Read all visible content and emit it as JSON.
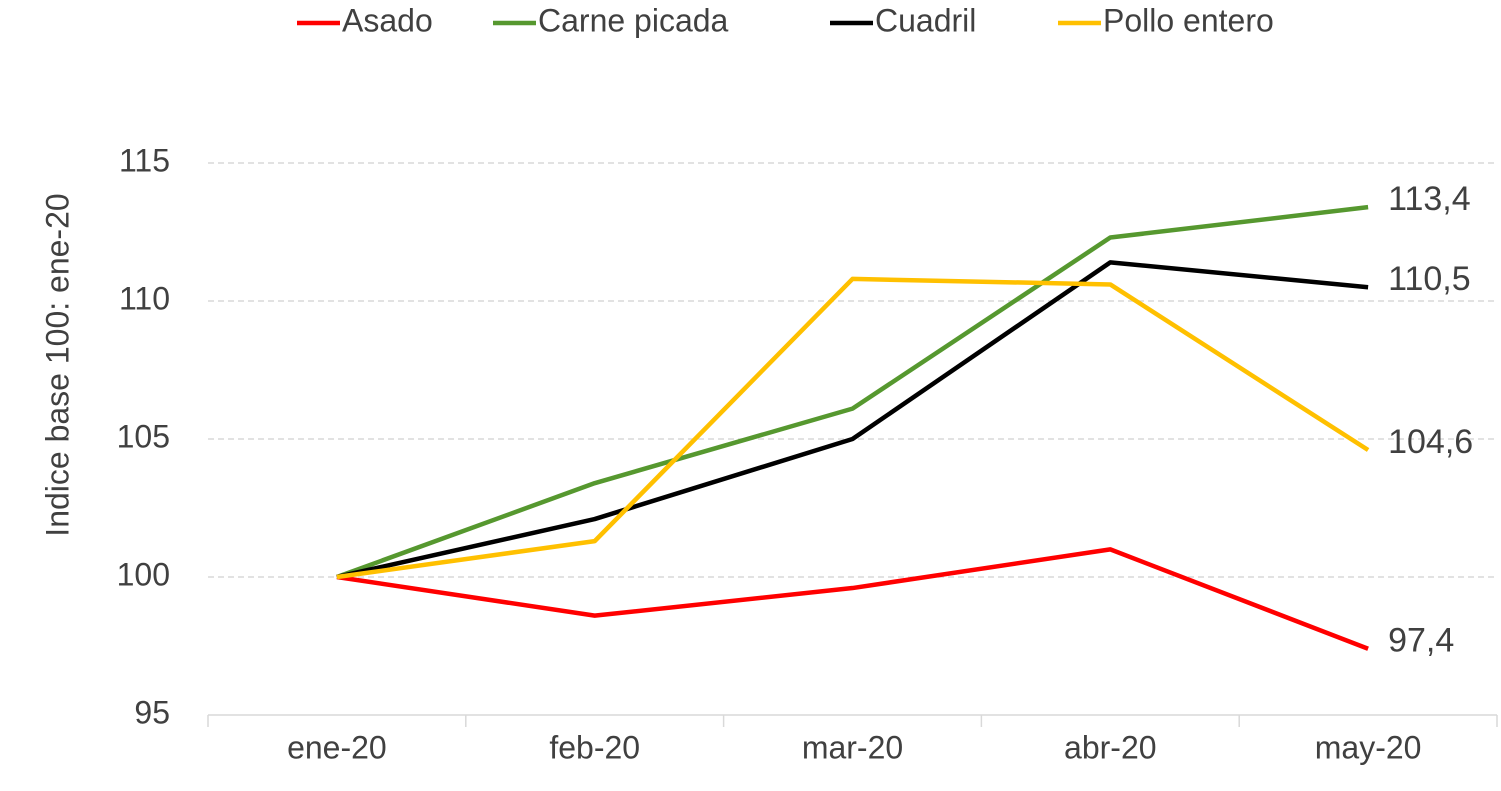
{
  "chart_data": {
    "type": "line",
    "y_label": "Indice base 100: ene-20",
    "categories": [
      "ene-20",
      "feb-20",
      "mar-20",
      "abr-20",
      "may-20"
    ],
    "series": [
      {
        "name": "Asado",
        "color": "#ff0000",
        "values": [
          100,
          98.6,
          99.6,
          101.0,
          97.4
        ],
        "value_labels": [
          null,
          null,
          null,
          null,
          "97,4"
        ]
      },
      {
        "name": "Carne picada",
        "color": "#56982f",
        "values": [
          100,
          103.4,
          106.1,
          112.3,
          113.4
        ],
        "value_labels": [
          null,
          null,
          null,
          null,
          "113,4"
        ]
      },
      {
        "name": "Cuadril",
        "color": "#000000",
        "values": [
          100,
          102.1,
          105.0,
          111.4,
          110.5
        ],
        "value_labels": [
          null,
          null,
          null,
          null,
          "110,5"
        ]
      },
      {
        "name": "Pollo entero",
        "color": "#ffc000",
        "values": [
          100,
          101.3,
          110.8,
          110.6,
          104.6
        ],
        "value_labels": [
          null,
          null,
          null,
          null,
          "104,6"
        ]
      }
    ],
    "ylim": [
      95,
      115
    ],
    "yticks": [
      95,
      100,
      105,
      110,
      115
    ],
    "grid": true,
    "legend": "top"
  }
}
